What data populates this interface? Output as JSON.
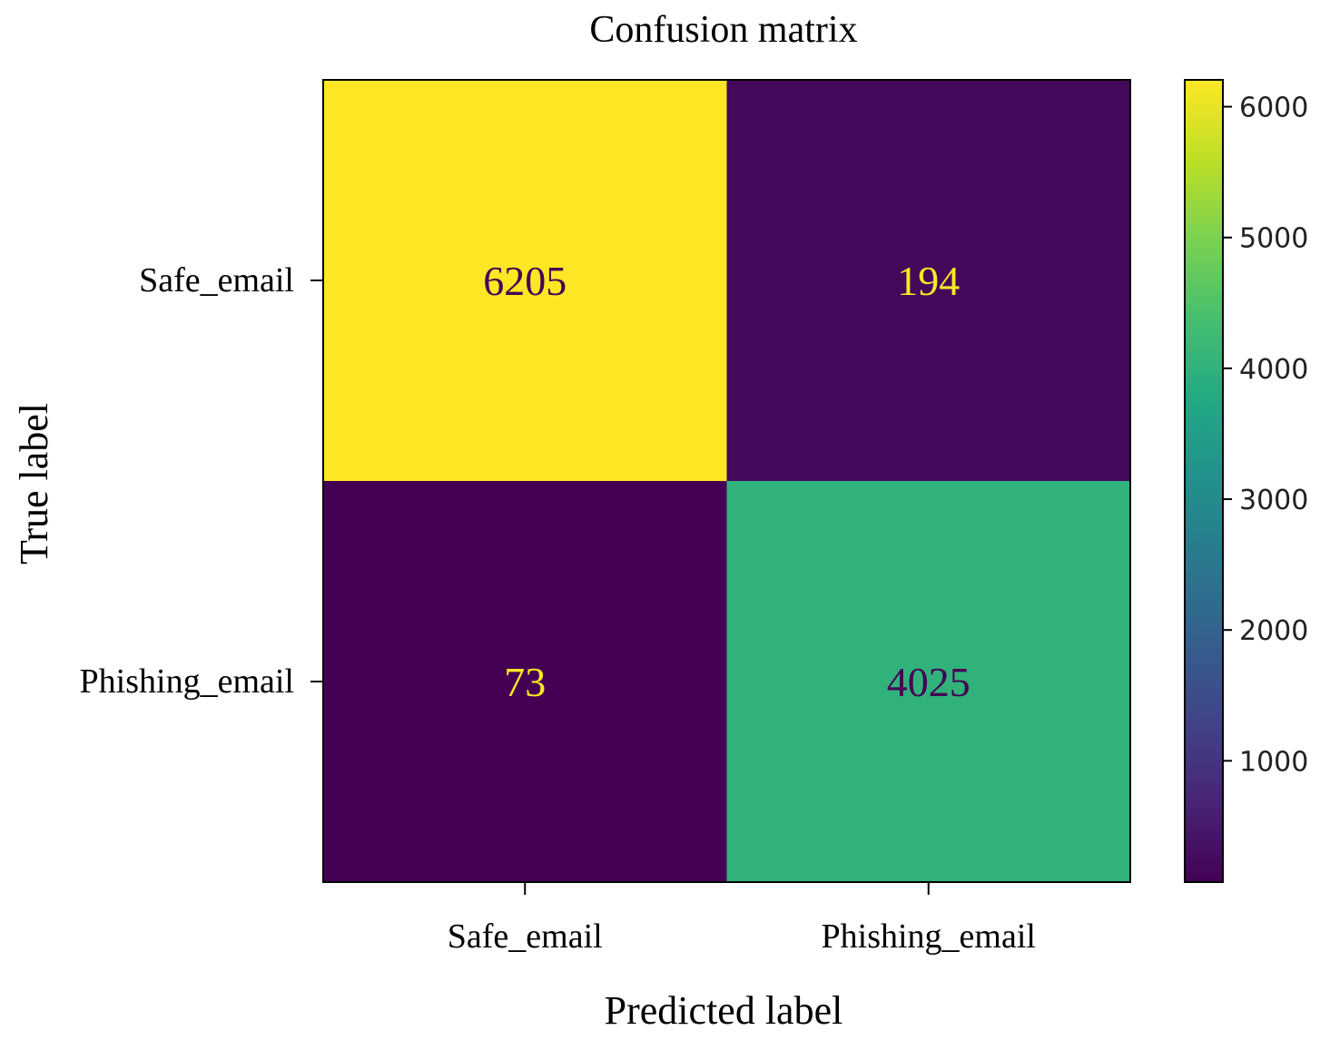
{
  "chart_data": {
    "type": "heatmap",
    "title": "Confusion matrix",
    "xlabel": "Predicted label",
    "ylabel": "True label",
    "x_categories": [
      "Safe_email",
      "Phishing_email"
    ],
    "y_categories": [
      "Safe_email",
      "Phishing_email"
    ],
    "values": [
      [
        6205,
        194
      ],
      [
        73,
        4025
      ]
    ],
    "colormap": "viridis",
    "colorbar": {
      "min": 73,
      "max": 6205,
      "ticks": [
        1000,
        2000,
        3000,
        4000,
        5000,
        6000
      ]
    },
    "colors": {
      "high": "#fde725",
      "low": "#440154",
      "mid_cell": "#30b17e",
      "text_on_dark": "#fde725",
      "text_on_light": "#440154"
    }
  }
}
